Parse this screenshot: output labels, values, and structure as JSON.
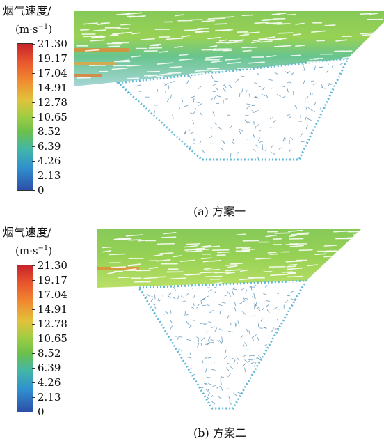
{
  "legend": {
    "title": "烟气速度/",
    "unit_prefix": "(m·s",
    "unit_exp": "−1",
    "unit_suffix": ")",
    "ticks": [
      "21.30",
      "19.17",
      "17.04",
      "14.91",
      "12.78",
      "10.65",
      "8.52",
      "6.39",
      "4.26",
      "2.13",
      "0"
    ]
  },
  "panels": [
    {
      "caption": "(a) 方案一"
    },
    {
      "caption": "(b) 方案二"
    }
  ],
  "colors": {
    "high": "#c7242b",
    "mid": "#6cc04b",
    "low": "#2c4fa7",
    "arrow_low": "#5a8fb5"
  }
}
